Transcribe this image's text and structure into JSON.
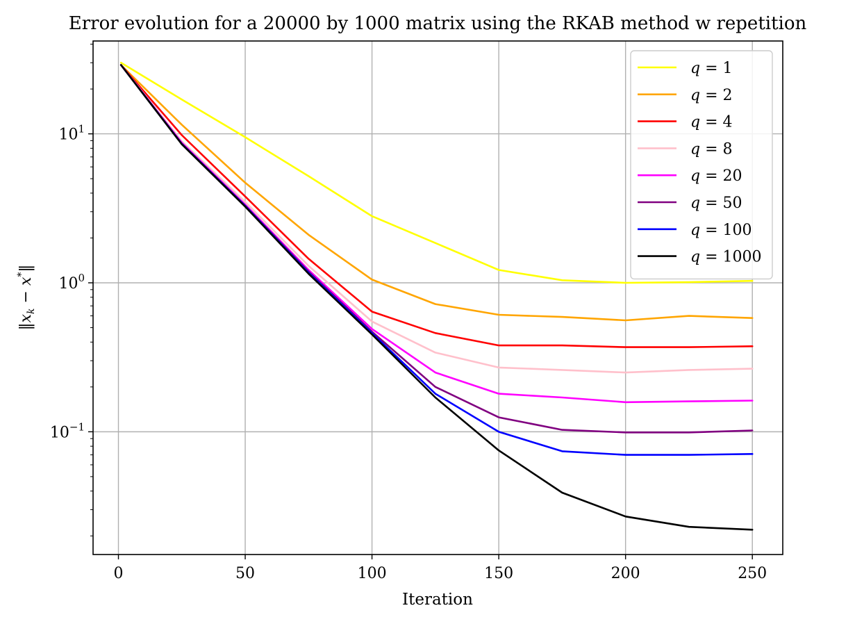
{
  "chart_data": {
    "type": "line",
    "title": "Error evolution for a 20000 by 1000 matrix using the RKAB method w repetition",
    "xlabel": "Iteration",
    "ylabel": "‖x_k − x*‖",
    "xlim": [
      -10,
      262
    ],
    "ylim": [
      0.015,
      42
    ],
    "yscale": "log",
    "grid": true,
    "legend_position": "top-right",
    "x_ticks": [
      0,
      50,
      100,
      150,
      200,
      250
    ],
    "y_ticks": [
      {
        "value": 10,
        "base": "10",
        "exp": "1"
      },
      {
        "value": 1,
        "base": "10",
        "exp": "0"
      },
      {
        "value": 0.1,
        "base": "10",
        "exp": "−1"
      }
    ],
    "x": [
      1,
      25,
      50,
      75,
      100,
      125,
      150,
      175,
      200,
      225,
      250
    ],
    "series": [
      {
        "name": "q = 1",
        "color": "#ffff00",
        "values": [
          30,
          17,
          9.5,
          5.2,
          2.8,
          1.85,
          1.22,
          1.04,
          1.0,
          1.01,
          1.03
        ]
      },
      {
        "name": "q = 2",
        "color": "#ffa500",
        "values": [
          29,
          11.5,
          4.7,
          2.1,
          1.05,
          0.72,
          0.61,
          0.59,
          0.56,
          0.6,
          0.58
        ]
      },
      {
        "name": "q = 4",
        "color": "#ff0000",
        "values": [
          29,
          9.8,
          3.8,
          1.45,
          0.64,
          0.46,
          0.38,
          0.38,
          0.37,
          0.37,
          0.375
        ]
      },
      {
        "name": "q = 8",
        "color": "#ffc0cb",
        "values": [
          29,
          8.9,
          3.5,
          1.3,
          0.55,
          0.34,
          0.27,
          0.26,
          0.25,
          0.26,
          0.265
        ]
      },
      {
        "name": "q = 20",
        "color": "#ff00ff",
        "values": [
          29,
          8.7,
          3.35,
          1.22,
          0.49,
          0.25,
          0.18,
          0.17,
          0.158,
          0.16,
          0.162
        ]
      },
      {
        "name": "q = 50",
        "color": "#800080",
        "values": [
          29,
          8.6,
          3.3,
          1.19,
          0.47,
          0.2,
          0.125,
          0.103,
          0.099,
          0.099,
          0.102
        ]
      },
      {
        "name": "q = 100",
        "color": "#0000ff",
        "values": [
          29,
          8.55,
          3.28,
          1.17,
          0.46,
          0.18,
          0.1,
          0.074,
          0.07,
          0.07,
          0.071
        ]
      },
      {
        "name": "q = 1000",
        "color": "#000000",
        "values": [
          29,
          8.5,
          3.25,
          1.15,
          0.45,
          0.17,
          0.075,
          0.039,
          0.027,
          0.023,
          0.022
        ]
      }
    ]
  }
}
